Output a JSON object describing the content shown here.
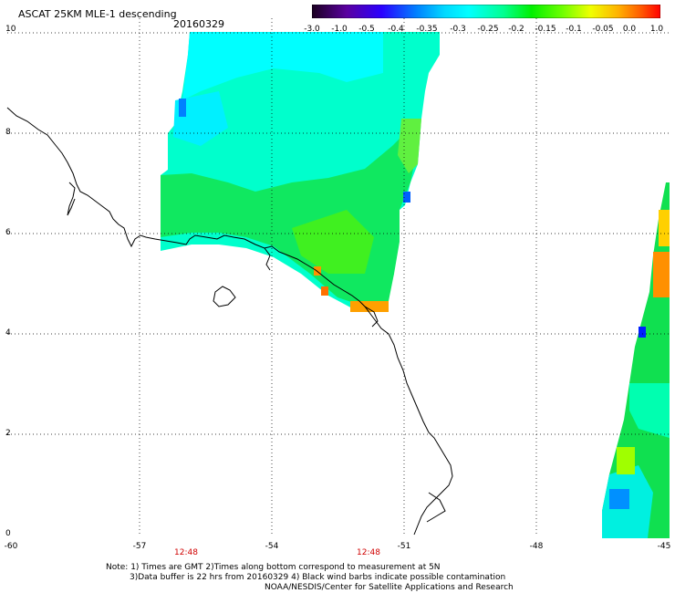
{
  "title": "ASCAT 25KM MLE-1 descending",
  "date": "20160329",
  "colorbar": {
    "labels": [
      "-3.0",
      "-1.0",
      "-0.5",
      "-0.4",
      "-0.35",
      "-0.3",
      "-0.25",
      "-0.2",
      "-0.15",
      "-0.1",
      "-0.05",
      "0.0",
      "1.0"
    ],
    "colors": [
      "#2a0038",
      "#5a00a0",
      "#3200ff",
      "#0060ff",
      "#00b4ff",
      "#00ffff",
      "#00ffa0",
      "#00f030",
      "#80ff00",
      "#e8ff00",
      "#ffc000",
      "#ff7000",
      "#ff1800"
    ]
  },
  "axes": {
    "y_labels": [
      "10",
      "8",
      "6",
      "4",
      "2",
      "0"
    ],
    "x_labels": [
      "-60",
      "-57",
      "-54",
      "-51",
      "-48",
      "-45"
    ],
    "time_labels": [
      "12:48",
      "12:48"
    ]
  },
  "notes": {
    "line1": "Note: 1) Times are GMT 2)Times along bottom correspond to measurement at 5N",
    "line2": "3)Data buffer is 22 hrs from 20160329 4) Black wind barbs indicate possible contamination",
    "line3": "NOAA/NESDIS/Center for Satellite Applications and Research"
  }
}
